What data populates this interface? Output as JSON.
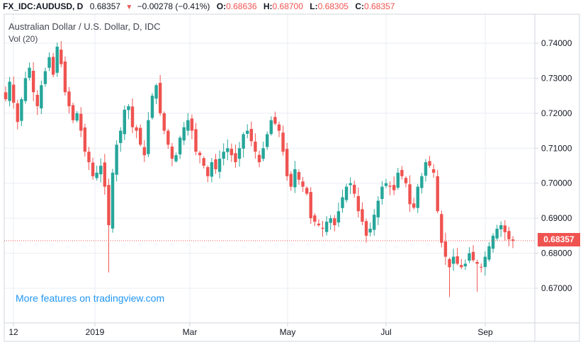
{
  "header": {
    "symbol": "FX_IDC:AUDUSD, D",
    "price": "0.68357",
    "arrow": "▼",
    "change": "−0.00278 (−0.41%)",
    "o_label": "O:",
    "o_value": "0.68636",
    "h_label": "H:",
    "h_value": "0.68700",
    "l_label": "L:",
    "l_value": "0.68305",
    "c_label": "C:",
    "c_value": "0.68357"
  },
  "legend": {
    "title": "Australian Dollar / U.S. Dollar, D, IDC",
    "volume": "Vol (20)"
  },
  "promo": "More features on tradingview.com",
  "current_price_label": "0.68357",
  "colors": {
    "up": "#26a69a",
    "down": "#ef5350",
    "grid": "#e9edf3",
    "axis": "#d1d4dc",
    "link": "#2196f3"
  },
  "chart_data": {
    "type": "candlestick",
    "x_ticks": [
      "12",
      "2019",
      "Mar",
      "May",
      "Jul",
      "Sep"
    ],
    "y_ticks": [
      "0.74000",
      "0.73000",
      "0.72000",
      "0.71000",
      "0.70000",
      "0.69000",
      "0.68000",
      "0.67000"
    ],
    "ylim": [
      0.663,
      0.746
    ],
    "current_price": 0.68357,
    "path": [
      0.724,
      0.729,
      0.723,
      0.7175,
      0.724,
      0.73,
      0.733,
      0.726,
      0.722,
      0.728,
      0.732,
      0.736,
      0.731,
      0.739,
      0.734,
      0.726,
      0.722,
      0.718,
      0.72,
      0.715,
      0.709,
      0.706,
      0.702,
      0.703,
      0.705,
      0.699,
      0.688,
      0.703,
      0.711,
      0.715,
      0.721,
      0.722,
      0.716,
      0.715,
      0.711,
      0.708,
      0.718,
      0.725,
      0.728,
      0.72,
      0.715,
      0.711,
      0.707,
      0.708,
      0.713,
      0.716,
      0.718,
      0.715,
      0.709,
      0.708,
      0.705,
      0.702,
      0.706,
      0.704,
      0.707,
      0.709,
      0.71,
      0.708,
      0.706,
      0.71,
      0.714,
      0.715,
      0.712,
      0.709,
      0.706,
      0.71,
      0.714,
      0.718,
      0.717,
      0.715,
      0.709,
      0.702,
      0.699,
      0.704,
      0.701,
      0.699,
      0.697,
      0.69,
      0.689,
      0.688,
      0.687,
      0.689,
      0.69,
      0.688,
      0.692,
      0.696,
      0.699,
      0.7,
      0.697,
      0.692,
      0.689,
      0.685,
      0.687,
      0.691,
      0.695,
      0.699,
      0.7,
      0.699,
      0.698,
      0.703,
      0.702,
      0.7,
      0.694,
      0.693,
      0.699,
      0.702,
      0.706,
      0.705,
      0.703,
      0.692,
      0.683,
      0.679,
      0.676,
      0.679,
      0.677,
      0.676,
      0.677,
      0.68,
      0.678,
      0.677,
      0.676,
      0.679,
      0.682,
      0.685,
      0.687,
      0.688,
      0.686,
      0.684,
      0.68357
    ],
    "notable_lows": [
      {
        "index": 26,
        "low": 0.6745
      },
      {
        "index": 112,
        "low": 0.6675
      },
      {
        "index": 119,
        "low": 0.669
      }
    ]
  }
}
